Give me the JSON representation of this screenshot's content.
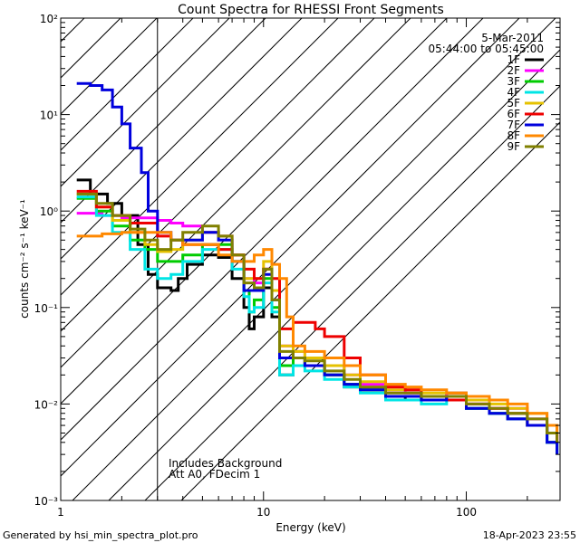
{
  "chart_data": {
    "type": "line",
    "title": "Count Spectra for RHESSI Front Segments",
    "xlabel": "Energy (keV)",
    "ylabel": "counts cm⁻² s⁻¹ keV⁻¹",
    "xscale": "log",
    "yscale": "log",
    "xlim": [
      1,
      290
    ],
    "ylim": [
      0.001,
      100
    ],
    "x_ticks": [
      {
        "value": 1,
        "label": "1"
      },
      {
        "value": 10,
        "label": "10"
      },
      {
        "value": 100,
        "label": "100"
      }
    ],
    "y_ticks": [
      {
        "value": 0.001,
        "label": "10⁻³"
      },
      {
        "value": 0.01,
        "label": "10⁻²"
      },
      {
        "value": 0.1,
        "label": "10⁻¹"
      },
      {
        "value": 1,
        "label": "10⁰"
      },
      {
        "value": 10,
        "label": "10¹"
      },
      {
        "value": 100,
        "label": "10²"
      }
    ],
    "hatched_region": {
      "x_from": 1,
      "x_to": 3
    },
    "date": "5-Mar-2011",
    "time_range": "05:44:00 to 05:45:00",
    "annotations": [
      "Includes Background",
      "Att A0, FDecim 1"
    ],
    "legend_position": "top-right",
    "series": [
      {
        "name": "1F",
        "color": "#000000",
        "points": [
          [
            1.2,
            2.1
          ],
          [
            1.4,
            1.5
          ],
          [
            1.7,
            1.2
          ],
          [
            2.0,
            0.9
          ],
          [
            2.4,
            0.45
          ],
          [
            2.7,
            0.22
          ],
          [
            3.0,
            0.16
          ],
          [
            3.5,
            0.15
          ],
          [
            3.8,
            0.2
          ],
          [
            4.2,
            0.28
          ],
          [
            5,
            0.35
          ],
          [
            6,
            0.33
          ],
          [
            7,
            0.2
          ],
          [
            8,
            0.1
          ],
          [
            8.5,
            0.06
          ],
          [
            9,
            0.08
          ],
          [
            10,
            0.16
          ],
          [
            11,
            0.08
          ],
          [
            12,
            0.02
          ],
          [
            14,
            0.03
          ],
          [
            16,
            0.025
          ],
          [
            20,
            0.02
          ],
          [
            25,
            0.015
          ],
          [
            30,
            0.014
          ],
          [
            40,
            0.011
          ],
          [
            50,
            0.012
          ],
          [
            60,
            0.011
          ],
          [
            80,
            0.013
          ],
          [
            100,
            0.009
          ],
          [
            130,
            0.008
          ],
          [
            160,
            0.007
          ],
          [
            200,
            0.006
          ],
          [
            250,
            0.004
          ],
          [
            280,
            0.003
          ]
        ]
      },
      {
        "name": "2F",
        "color": "#ff00ff",
        "points": [
          [
            1.2,
            0.95
          ],
          [
            1.6,
            0.9
          ],
          [
            2.0,
            0.85
          ],
          [
            2.5,
            0.85
          ],
          [
            3.0,
            0.8
          ],
          [
            3.5,
            0.75
          ],
          [
            4.0,
            0.7
          ],
          [
            5,
            0.6
          ],
          [
            6,
            0.55
          ],
          [
            7,
            0.35
          ],
          [
            8,
            0.2
          ],
          [
            9,
            0.18
          ],
          [
            10,
            0.25
          ],
          [
            11,
            0.15
          ],
          [
            12,
            0.04
          ],
          [
            14,
            0.035
          ],
          [
            16,
            0.03
          ],
          [
            20,
            0.025
          ],
          [
            25,
            0.02
          ],
          [
            30,
            0.016
          ],
          [
            40,
            0.014
          ],
          [
            50,
            0.013
          ],
          [
            60,
            0.012
          ],
          [
            80,
            0.013
          ],
          [
            100,
            0.01
          ],
          [
            130,
            0.009
          ],
          [
            160,
            0.009
          ],
          [
            200,
            0.007
          ],
          [
            250,
            0.005
          ],
          [
            280,
            0.004
          ]
        ]
      },
      {
        "name": "3F",
        "color": "#00cc00",
        "points": [
          [
            1.2,
            1.35
          ],
          [
            1.5,
            1.0
          ],
          [
            1.8,
            0.7
          ],
          [
            2.2,
            0.5
          ],
          [
            2.6,
            0.4
          ],
          [
            3.0,
            0.3
          ],
          [
            3.5,
            0.3
          ],
          [
            4.0,
            0.35
          ],
          [
            5,
            0.45
          ],
          [
            6,
            0.45
          ],
          [
            7,
            0.3
          ],
          [
            8,
            0.15
          ],
          [
            8.5,
            0.09
          ],
          [
            9,
            0.12
          ],
          [
            10,
            0.2
          ],
          [
            11,
            0.1
          ],
          [
            12,
            0.025
          ],
          [
            14,
            0.03
          ],
          [
            16,
            0.025
          ],
          [
            20,
            0.02
          ],
          [
            25,
            0.016
          ],
          [
            30,
            0.014
          ],
          [
            40,
            0.012
          ],
          [
            50,
            0.012
          ],
          [
            60,
            0.011
          ],
          [
            80,
            0.012
          ],
          [
            100,
            0.009
          ],
          [
            130,
            0.008
          ],
          [
            160,
            0.008
          ],
          [
            200,
            0.006
          ],
          [
            250,
            0.004
          ],
          [
            280,
            0.003
          ]
        ]
      },
      {
        "name": "4F",
        "color": "#00e5e5",
        "points": [
          [
            1.2,
            1.4
          ],
          [
            1.5,
            0.9
          ],
          [
            1.8,
            0.6
          ],
          [
            2.2,
            0.4
          ],
          [
            2.6,
            0.25
          ],
          [
            3.0,
            0.2
          ],
          [
            3.5,
            0.22
          ],
          [
            4.0,
            0.3
          ],
          [
            5,
            0.4
          ],
          [
            6,
            0.4
          ],
          [
            7,
            0.25
          ],
          [
            8,
            0.13
          ],
          [
            8.5,
            0.09
          ],
          [
            9,
            0.1
          ],
          [
            10,
            0.18
          ],
          [
            11,
            0.09
          ],
          [
            12,
            0.02
          ],
          [
            14,
            0.025
          ],
          [
            16,
            0.022
          ],
          [
            20,
            0.018
          ],
          [
            25,
            0.015
          ],
          [
            30,
            0.013
          ],
          [
            40,
            0.011
          ],
          [
            50,
            0.011
          ],
          [
            60,
            0.01
          ],
          [
            80,
            0.011
          ],
          [
            100,
            0.009
          ],
          [
            130,
            0.008
          ],
          [
            160,
            0.007
          ],
          [
            200,
            0.006
          ],
          [
            250,
            0.004
          ],
          [
            280,
            0.003
          ]
        ]
      },
      {
        "name": "5F",
        "color": "#e5c200",
        "points": [
          [
            1.2,
            1.5
          ],
          [
            1.5,
            1.1
          ],
          [
            1.8,
            0.8
          ],
          [
            2.2,
            0.6
          ],
          [
            2.6,
            0.45
          ],
          [
            3.0,
            0.38
          ],
          [
            3.5,
            0.4
          ],
          [
            4.0,
            0.5
          ],
          [
            5,
            0.6
          ],
          [
            6,
            0.55
          ],
          [
            7,
            0.35
          ],
          [
            8,
            0.2
          ],
          [
            9,
            0.2
          ],
          [
            10,
            0.3
          ],
          [
            11,
            0.15
          ],
          [
            12,
            0.04
          ],
          [
            14,
            0.035
          ],
          [
            16,
            0.03
          ],
          [
            20,
            0.025
          ],
          [
            25,
            0.02
          ],
          [
            30,
            0.017
          ],
          [
            40,
            0.014
          ],
          [
            50,
            0.014
          ],
          [
            60,
            0.013
          ],
          [
            80,
            0.013
          ],
          [
            100,
            0.011
          ],
          [
            130,
            0.01
          ],
          [
            160,
            0.009
          ],
          [
            200,
            0.008
          ],
          [
            250,
            0.006
          ],
          [
            280,
            0.005
          ]
        ]
      },
      {
        "name": "6F",
        "color": "#ee0000",
        "points": [
          [
            1.2,
            1.6
          ],
          [
            1.5,
            1.1
          ],
          [
            1.8,
            0.9
          ],
          [
            2.2,
            0.75
          ],
          [
            2.6,
            0.75
          ],
          [
            3.0,
            0.55
          ],
          [
            3.5,
            0.5
          ],
          [
            4.0,
            0.45
          ],
          [
            5,
            0.45
          ],
          [
            6,
            0.4
          ],
          [
            7,
            0.35
          ],
          [
            8,
            0.25
          ],
          [
            9,
            0.2
          ],
          [
            10,
            0.25
          ],
          [
            11,
            0.2
          ],
          [
            12,
            0.06
          ],
          [
            14,
            0.07
          ],
          [
            16,
            0.07
          ],
          [
            18,
            0.06
          ],
          [
            20,
            0.05
          ],
          [
            25,
            0.03
          ],
          [
            30,
            0.02
          ],
          [
            40,
            0.015
          ],
          [
            50,
            0.014
          ],
          [
            60,
            0.012
          ],
          [
            80,
            0.011
          ],
          [
            100,
            0.01
          ],
          [
            130,
            0.009
          ],
          [
            160,
            0.008
          ],
          [
            200,
            0.006
          ],
          [
            250,
            0.005
          ],
          [
            280,
            0.004
          ]
        ]
      },
      {
        "name": "7F",
        "color": "#0000dd",
        "points": [
          [
            1.2,
            21
          ],
          [
            1.4,
            20
          ],
          [
            1.6,
            18
          ],
          [
            1.8,
            12
          ],
          [
            2.0,
            8
          ],
          [
            2.2,
            4.5
          ],
          [
            2.5,
            2.5
          ],
          [
            2.7,
            1.0
          ],
          [
            3.0,
            0.6
          ],
          [
            3.5,
            0.5
          ],
          [
            4.0,
            0.5
          ],
          [
            5,
            0.6
          ],
          [
            6,
            0.5
          ],
          [
            7,
            0.3
          ],
          [
            8,
            0.15
          ],
          [
            9,
            0.15
          ],
          [
            10,
            0.22
          ],
          [
            11,
            0.12
          ],
          [
            12,
            0.03
          ],
          [
            14,
            0.03
          ],
          [
            16,
            0.025
          ],
          [
            20,
            0.02
          ],
          [
            25,
            0.016
          ],
          [
            30,
            0.014
          ],
          [
            40,
            0.012
          ],
          [
            50,
            0.012
          ],
          [
            60,
            0.011
          ],
          [
            80,
            0.012
          ],
          [
            100,
            0.009
          ],
          [
            130,
            0.008
          ],
          [
            160,
            0.007
          ],
          [
            200,
            0.006
          ],
          [
            250,
            0.004
          ],
          [
            280,
            0.003
          ]
        ]
      },
      {
        "name": "8F",
        "color": "#ff8800",
        "points": [
          [
            1.2,
            0.55
          ],
          [
            1.6,
            0.58
          ],
          [
            2.0,
            0.6
          ],
          [
            2.5,
            0.6
          ],
          [
            3.0,
            0.6
          ],
          [
            3.5,
            0.5
          ],
          [
            4.0,
            0.45
          ],
          [
            5,
            0.45
          ],
          [
            6,
            0.35
          ],
          [
            7,
            0.3
          ],
          [
            8,
            0.3
          ],
          [
            9,
            0.35
          ],
          [
            10,
            0.4
          ],
          [
            11,
            0.28
          ],
          [
            12,
            0.2
          ],
          [
            13,
            0.08
          ],
          [
            14,
            0.04
          ],
          [
            16,
            0.035
          ],
          [
            20,
            0.03
          ],
          [
            25,
            0.025
          ],
          [
            30,
            0.02
          ],
          [
            40,
            0.016
          ],
          [
            50,
            0.015
          ],
          [
            60,
            0.014
          ],
          [
            80,
            0.013
          ],
          [
            100,
            0.012
          ],
          [
            130,
            0.011
          ],
          [
            160,
            0.01
          ],
          [
            200,
            0.008
          ],
          [
            250,
            0.006
          ],
          [
            280,
            0.005
          ]
        ]
      },
      {
        "name": "9F",
        "color": "#808000",
        "points": [
          [
            1.2,
            1.5
          ],
          [
            1.5,
            1.2
          ],
          [
            1.8,
            0.9
          ],
          [
            2.2,
            0.65
          ],
          [
            2.6,
            0.5
          ],
          [
            3.0,
            0.4
          ],
          [
            3.5,
            0.5
          ],
          [
            4.0,
            0.6
          ],
          [
            5,
            0.7
          ],
          [
            6,
            0.55
          ],
          [
            7,
            0.35
          ],
          [
            8,
            0.18
          ],
          [
            9,
            0.16
          ],
          [
            10,
            0.25
          ],
          [
            11,
            0.12
          ],
          [
            12,
            0.035
          ],
          [
            14,
            0.03
          ],
          [
            16,
            0.028
          ],
          [
            20,
            0.022
          ],
          [
            25,
            0.018
          ],
          [
            30,
            0.015
          ],
          [
            40,
            0.013
          ],
          [
            50,
            0.013
          ],
          [
            60,
            0.012
          ],
          [
            80,
            0.012
          ],
          [
            100,
            0.01
          ],
          [
            130,
            0.009
          ],
          [
            160,
            0.008
          ],
          [
            200,
            0.007
          ],
          [
            250,
            0.005
          ],
          [
            280,
            0.004
          ]
        ]
      }
    ]
  },
  "footer": {
    "generated_by": "Generated by hsi_min_spectra_plot.pro",
    "timestamp": "18-Apr-2023 23:55"
  }
}
